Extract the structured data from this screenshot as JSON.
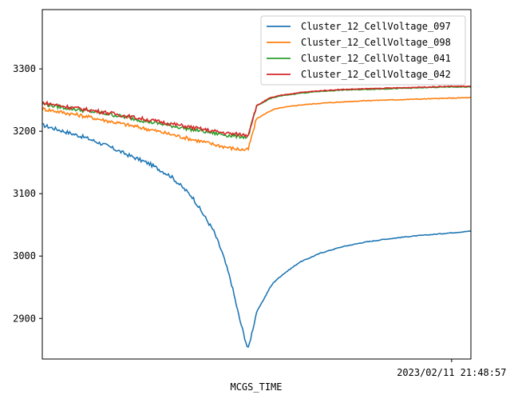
{
  "chart_data": {
    "type": "line",
    "xlabel": "MCGS_TIME",
    "ylabel": "",
    "x_tick_labels": [
      "2023/02/11 21:48:57"
    ],
    "ylim": [
      2835,
      3395
    ],
    "yticks": [
      2900,
      3000,
      3100,
      3200,
      3300
    ],
    "grid": false,
    "legend_position": "top-right",
    "colors": {
      "Cluster_12_CellVoltage_097": "#1f77b4",
      "Cluster_12_CellVoltage_098": "#ff7f0e",
      "Cluster_12_CellVoltage_041": "#2ca02c",
      "Cluster_12_CellVoltage_042": "#d62728"
    },
    "x": [
      0,
      5,
      10,
      15,
      20,
      25,
      30,
      35,
      40,
      42,
      44,
      46,
      48,
      50,
      52,
      53,
      54,
      56,
      60,
      65,
      70,
      75,
      80,
      85,
      90,
      95,
      100
    ],
    "series": [
      {
        "name": "Cluster_12_CellVoltage_097",
        "values": [
          3210,
          3200,
          3190,
          3177,
          3162,
          3148,
          3128,
          3095,
          3040,
          3005,
          2960,
          2900,
          2850,
          2910,
          2935,
          2948,
          2958,
          2970,
          2990,
          3005,
          3015,
          3022,
          3027,
          3031,
          3034,
          3037,
          3040
        ]
      },
      {
        "name": "Cluster_12_CellVoltage_098",
        "values": [
          3236,
          3230,
          3224,
          3217,
          3210,
          3203,
          3195,
          3187,
          3179,
          3176,
          3173,
          3171,
          3170,
          3220,
          3228,
          3232,
          3235,
          3238,
          3242,
          3245,
          3247,
          3249,
          3250,
          3251,
          3252,
          3253,
          3254
        ]
      },
      {
        "name": "Cluster_12_CellVoltage_041",
        "values": [
          3244,
          3238,
          3233,
          3228,
          3222,
          3215,
          3209,
          3203,
          3197,
          3195,
          3193,
          3192,
          3191,
          3240,
          3248,
          3252,
          3254,
          3257,
          3261,
          3264,
          3266,
          3267,
          3268,
          3269,
          3270,
          3271,
          3271
        ]
      },
      {
        "name": "Cluster_12_CellVoltage_042",
        "values": [
          3246,
          3240,
          3235,
          3230,
          3224,
          3218,
          3212,
          3206,
          3200,
          3198,
          3196,
          3195,
          3194,
          3241,
          3249,
          3253,
          3255,
          3258,
          3262,
          3265,
          3267,
          3268,
          3269,
          3270,
          3271,
          3272,
          3272
        ]
      }
    ]
  }
}
